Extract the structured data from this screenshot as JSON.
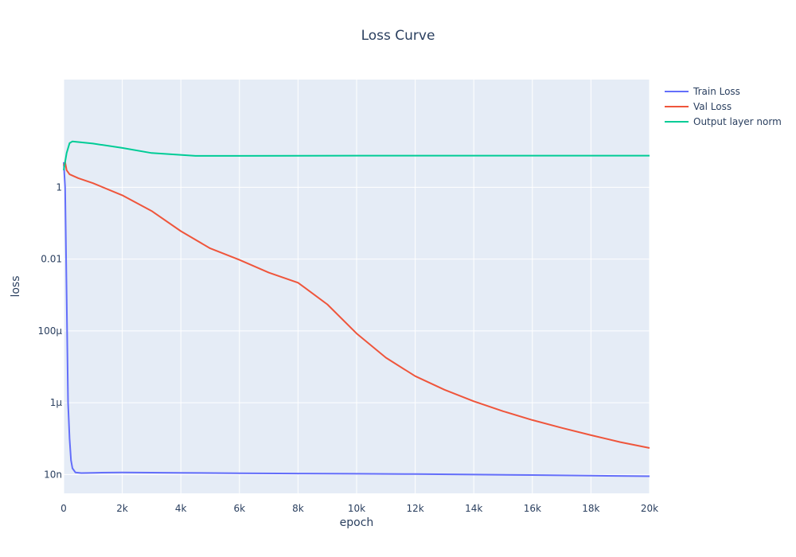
{
  "chart_data": {
    "type": "line",
    "title": "Loss Curve",
    "xlabel": "epoch",
    "ylabel": "loss",
    "x_scale": "linear",
    "y_scale": "log",
    "xlim": [
      0,
      20000
    ],
    "ylim": [
      3e-09,
      1000
    ],
    "grid": true,
    "legend_position": "right",
    "x_ticks": [
      {
        "value": 0,
        "label": "0"
      },
      {
        "value": 2000,
        "label": "2k"
      },
      {
        "value": 4000,
        "label": "4k"
      },
      {
        "value": 6000,
        "label": "6k"
      },
      {
        "value": 8000,
        "label": "8k"
      },
      {
        "value": 10000,
        "label": "10k"
      },
      {
        "value": 12000,
        "label": "12k"
      },
      {
        "value": 14000,
        "label": "14k"
      },
      {
        "value": 16000,
        "label": "16k"
      },
      {
        "value": 18000,
        "label": "18k"
      },
      {
        "value": 20000,
        "label": "20k"
      }
    ],
    "y_ticks": [
      {
        "value": 1,
        "label": "1"
      },
      {
        "value": 0.01,
        "label": "0.01"
      },
      {
        "value": 0.0001,
        "label": "100μ"
      },
      {
        "value": 1e-06,
        "label": "1μ"
      },
      {
        "value": 1e-08,
        "label": "10n"
      }
    ],
    "series": [
      {
        "name": "Train Loss",
        "color": "#636efa",
        "x": [
          0,
          50,
          100,
          150,
          200,
          250,
          300,
          400,
          600,
          1000,
          2000,
          4000,
          6000,
          8000,
          10000,
          12000,
          14000,
          16000,
          18000,
          20000
        ],
        "y": [
          5,
          1,
          0.001,
          1e-06,
          1e-07,
          2.5e-08,
          1.5e-08,
          1.15e-08,
          1.1e-08,
          1.12e-08,
          1.15e-08,
          1.12e-08,
          1.09e-08,
          1.07e-08,
          1.05e-08,
          1.03e-08,
          1e-08,
          9.7e-09,
          9.3e-09,
          9e-09
        ]
      },
      {
        "name": "Val Loss",
        "color": "#ef553b",
        "x": [
          0,
          50,
          100,
          200,
          500,
          1000,
          2000,
          3000,
          4000,
          5000,
          6000,
          7000,
          8000,
          9000,
          10000,
          11000,
          12000,
          13000,
          14000,
          15000,
          16000,
          17000,
          18000,
          19000,
          20000
        ],
        "y": [
          4,
          5,
          3,
          2.3,
          1.8,
          1.3,
          0.6,
          0.22,
          0.06,
          0.02,
          0.0095,
          0.0042,
          0.0022,
          0.00055,
          8.5e-05,
          1.8e-05,
          5.5e-06,
          2.3e-06,
          1.1e-06,
          5.8e-07,
          3.3e-07,
          2e-07,
          1.25e-07,
          8e-08,
          5.5e-08
        ]
      },
      {
        "name": "Output layer norm",
        "color": "#00cc96",
        "x": [
          0,
          100,
          200,
          300,
          1000,
          2000,
          3000,
          4500,
          6000,
          10000,
          14000,
          20000
        ],
        "y": [
          3,
          9,
          17,
          19,
          16.5,
          12.5,
          9,
          7.5,
          7.5,
          7.6,
          7.6,
          7.6
        ]
      }
    ]
  }
}
